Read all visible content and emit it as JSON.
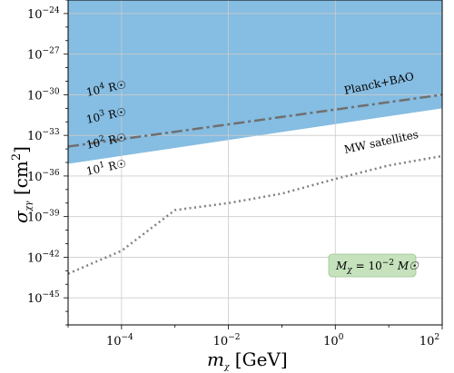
{
  "chart_data": {
    "type": "area",
    "title": "",
    "xlabel": "m_χ [GeV]",
    "ylabel": "σ_χγ [cm²]",
    "x_scale": "log",
    "y_scale": "log",
    "xlim": [
      1e-05,
      100
    ],
    "ylim": [
      1e-47,
      1e-23
    ],
    "grid": true,
    "x_ticks": [
      {
        "value": 0.0001,
        "base": "10",
        "exp": "−4"
      },
      {
        "value": 0.01,
        "base": "10",
        "exp": "−2"
      },
      {
        "value": 1,
        "base": "10",
        "exp": "0"
      },
      {
        "value": 100,
        "base": "10",
        "exp": "2"
      }
    ],
    "y_ticks": [
      {
        "value": 1e-24,
        "base": "10",
        "exp": "−24"
      },
      {
        "value": 1e-27,
        "base": "10",
        "exp": "−27"
      },
      {
        "value": 1e-30,
        "base": "10",
        "exp": "−30"
      },
      {
        "value": 1e-33,
        "base": "10",
        "exp": "−33"
      },
      {
        "value": 1e-36,
        "base": "10",
        "exp": "−36"
      },
      {
        "value": 1e-39,
        "base": "10",
        "exp": "−39"
      },
      {
        "value": 1e-42,
        "base": "10",
        "exp": "−42"
      },
      {
        "value": 1e-45,
        "base": "10",
        "exp": "−45"
      }
    ],
    "bands": [
      {
        "name": "10⁴ R☉",
        "color": "#d6edd0",
        "lower_x": [
          1e-05,
          100
        ],
        "lower_y": [
          3e-31,
          2e-27
        ]
      },
      {
        "name": "10³ R☉",
        "color": "#c2e3d8",
        "lower_x": [
          1e-05,
          100
        ],
        "lower_y": [
          1e-32,
          1e-28
        ]
      },
      {
        "name": "10² R☉",
        "color": "#a4d3e6",
        "lower_x": [
          1e-05,
          100
        ],
        "lower_y": [
          3e-34,
          3e-30
        ]
      },
      {
        "name": "10¹ R☉",
        "color": "#86bde2",
        "lower_x": [
          1e-05,
          100
        ],
        "lower_y": [
          8e-36,
          1e-31
        ]
      }
    ],
    "series": [
      {
        "name": "Planck+BAO",
        "style": "dashdot",
        "color": "#6f6f6f",
        "x": [
          1e-05,
          100
        ],
        "y": [
          1.5e-34,
          1e-30
        ]
      },
      {
        "name": "MW satellites",
        "style": "dotted",
        "color": "#808080",
        "x": [
          1e-05,
          0.0001,
          0.001,
          0.01,
          0.1,
          1,
          10,
          100
        ],
        "y": [
          6e-44,
          3e-42,
          3e-39,
          1e-38,
          5e-38,
          6e-37,
          6e-36,
          3e-35
        ]
      }
    ],
    "annotation": {
      "text": "M_χ = 10⁻² M☉",
      "color": "#c6e2bd"
    }
  },
  "labels": {
    "xlabel_main": "m",
    "xlabel_sub": "χ",
    "xlabel_unit": " [GeV]",
    "ylabel_main": "σ",
    "ylabel_sub": "χγ",
    "ylabel_unit": " [cm",
    "ylabel_sup": "2",
    "ylabel_close": "]",
    "band_labels": [
      {
        "base": "10",
        "exp": "4",
        "unit": " R☉"
      },
      {
        "base": "10",
        "exp": "3",
        "unit": " R☉"
      },
      {
        "base": "10",
        "exp": "2",
        "unit": " R☉"
      },
      {
        "base": "10",
        "exp": "1",
        "unit": " R☉"
      }
    ],
    "planck_label": "Planck+BAO",
    "mw_label": "MW satellites",
    "anno_main": "M",
    "anno_sub": "χ",
    "anno_eq": " = 10",
    "anno_sup": "−2",
    "anno_unit": " M☉"
  }
}
